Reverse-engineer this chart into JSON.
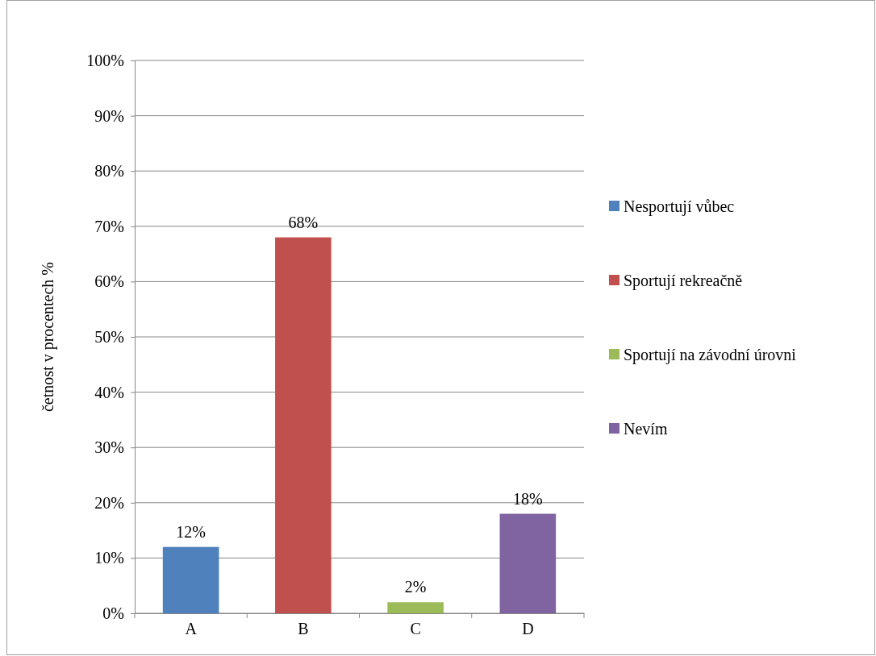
{
  "chart_data": {
    "type": "bar",
    "ylabel": "četnost v procentech %",
    "categories": [
      "A",
      "B",
      "C",
      "D"
    ],
    "series": [
      {
        "name": "Nesportují vůbec",
        "color": "#4f81bd",
        "values": [
          12,
          null,
          null,
          null
        ],
        "value_labels": [
          "12%",
          null,
          null,
          null
        ]
      },
      {
        "name": "Sportují rekreačně",
        "color": "#c0504d",
        "values": [
          null,
          68,
          null,
          null
        ],
        "value_labels": [
          null,
          "68%",
          null,
          null
        ]
      },
      {
        "name": "Sportují na závodní úrovni",
        "color": "#9bbb59",
        "values": [
          null,
          null,
          2,
          null
        ],
        "value_labels": [
          null,
          null,
          "2%",
          null
        ]
      },
      {
        "name": "Nevím",
        "color": "#8064a2",
        "values": [
          null,
          null,
          null,
          18
        ],
        "value_labels": [
          null,
          null,
          null,
          "18%"
        ]
      }
    ],
    "ylim": [
      0,
      100
    ],
    "yticks": [
      {
        "value": 0,
        "label": "0%"
      },
      {
        "value": 10,
        "label": "10%"
      },
      {
        "value": 20,
        "label": "20%"
      },
      {
        "value": 30,
        "label": "30%"
      },
      {
        "value": 40,
        "label": "40%"
      },
      {
        "value": 50,
        "label": "50%"
      },
      {
        "value": 60,
        "label": "60%"
      },
      {
        "value": 70,
        "label": "70%"
      },
      {
        "value": 80,
        "label": "80%"
      },
      {
        "value": 90,
        "label": "90%"
      },
      {
        "value": 100,
        "label": "100%"
      }
    ],
    "grid": "y",
    "legend": "right"
  }
}
